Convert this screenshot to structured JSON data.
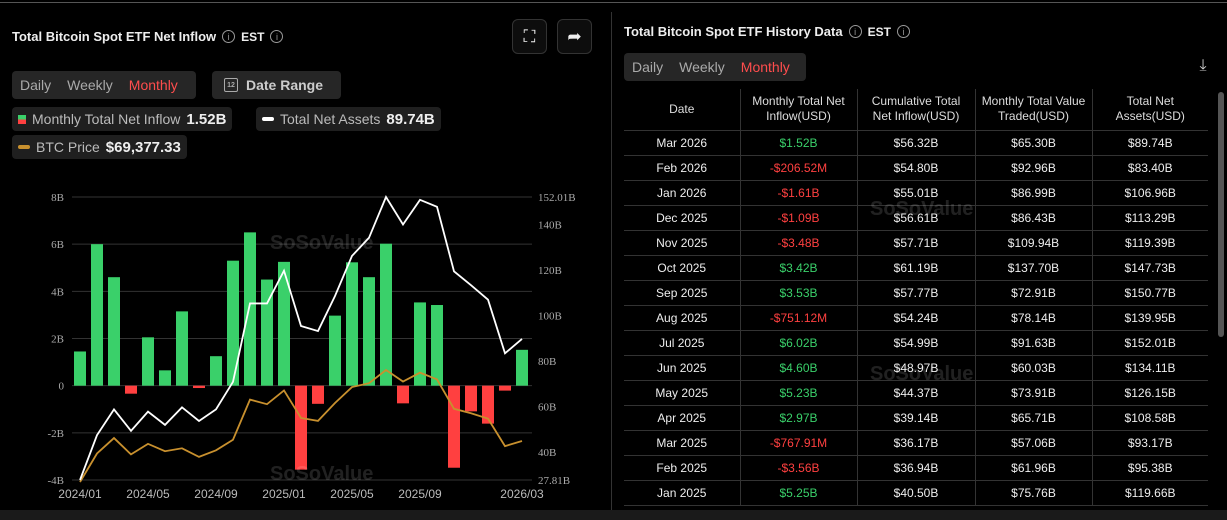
{
  "left_panel": {
    "title": "Total Bitcoin Spot ETF Net Inflow",
    "timezone": "EST",
    "tabs": [
      "Daily",
      "Weekly",
      "Monthly"
    ],
    "active_tab": "Monthly",
    "date_range_label": "Date Range",
    "calendar_icon_text": "12",
    "legend": {
      "inflow_label": "Monthly Total Net Inflow",
      "inflow_value": "1.52B",
      "assets_label": "Total Net Assets",
      "assets_value": "89.74B",
      "price_label": "BTC Price",
      "price_value": "$69,377.33"
    },
    "watermark": "SoSoValue"
  },
  "colors": {
    "positive": "#3ad06a",
    "negative": "#ff4040",
    "assets_line": "#ffffff",
    "price_line": "#c8902e",
    "active_tab": "#ff4d4d"
  },
  "chart_data": {
    "type": "bar+line",
    "categories": [
      "2024/01",
      "2024/02",
      "2024/03",
      "2024/04",
      "2024/05",
      "2024/06",
      "2024/07",
      "2024/08",
      "2024/09",
      "2024/10",
      "2024/11",
      "2024/12",
      "2025/01",
      "2025/02",
      "2025/03",
      "2025/04",
      "2025/05",
      "2025/06",
      "2025/07",
      "2025/08",
      "2025/09",
      "2025/10",
      "2025/11",
      "2025/12",
      "2026/01",
      "2026/02",
      "2026/03"
    ],
    "x_tick_labels": [
      "2024/01",
      "2024/05",
      "2024/09",
      "2025/01",
      "2025/05",
      "2025/09",
      "2026/03"
    ],
    "x_tick_index": [
      0,
      4,
      8,
      12,
      16,
      20,
      26
    ],
    "left_axis": {
      "ylim": [
        -4,
        8
      ],
      "unit": "B",
      "ticks": [
        "8B",
        "6B",
        "4B",
        "2B",
        "0",
        "-2B",
        "-4B"
      ],
      "tick_values": [
        8,
        6,
        4,
        2,
        0,
        -2,
        -4
      ]
    },
    "right_axis": {
      "ylim": [
        27.81,
        152.01
      ],
      "ticks": [
        "152.01B",
        "140B",
        "120B",
        "100B",
        "80B",
        "60B",
        "40B",
        "27.81B"
      ],
      "tick_values": [
        152.01,
        140,
        120,
        100,
        80,
        60,
        40,
        27.81
      ]
    },
    "grid": true,
    "series": [
      {
        "name": "Monthly Total Net Inflow",
        "type": "bar",
        "axis": "left",
        "values": [
          1.45,
          6.0,
          4.6,
          -0.34,
          2.05,
          0.65,
          3.15,
          -0.1,
          1.25,
          5.3,
          6.5,
          4.5,
          5.25,
          -3.56,
          -0.77,
          2.97,
          5.23,
          4.6,
          6.02,
          -0.75,
          3.53,
          3.42,
          -3.48,
          -1.09,
          -1.61,
          -0.21,
          1.52
        ]
      },
      {
        "name": "Total Net Assets",
        "type": "line",
        "axis": "right",
        "values": [
          27.81,
          47.5,
          58.8,
          49.4,
          57.8,
          52.0,
          59.7,
          53.7,
          58.8,
          70.9,
          105.3,
          105.3,
          119.66,
          95.38,
          93.17,
          108.58,
          126.15,
          134.11,
          152.01,
          139.95,
          150.77,
          147.73,
          119.39,
          113.29,
          106.96,
          83.4,
          89.74
        ]
      },
      {
        "name": "BTC Price",
        "type": "line",
        "axis": "hidden",
        "values": [
          42600,
          61200,
          71300,
          60600,
          67500,
          62700,
          64600,
          59000,
          63300,
          70200,
          96400,
          93400,
          102400,
          84400,
          82500,
          94200,
          104600,
          107100,
          115700,
          108200,
          114000,
          109600,
          90400,
          87500,
          84000,
          66000,
          69377.33
        ]
      }
    ]
  },
  "right_panel": {
    "title": "Total Bitcoin Spot ETF History Data",
    "timezone": "EST",
    "tabs": [
      "Daily",
      "Weekly",
      "Monthly"
    ],
    "active_tab": "Monthly",
    "columns": [
      "Date",
      "Monthly Total Net Inflow(USD)",
      "Cumulative Total Net Inflow(USD)",
      "Monthly Total Value Traded(USD)",
      "Total Net Assets(USD)"
    ],
    "rows": [
      [
        "Mar 2026",
        "$1.52B",
        "$56.32B",
        "$65.30B",
        "$89.74B"
      ],
      [
        "Feb 2026",
        "-$206.52M",
        "$54.80B",
        "$92.96B",
        "$83.40B"
      ],
      [
        "Jan 2026",
        "-$1.61B",
        "$55.01B",
        "$86.99B",
        "$106.96B"
      ],
      [
        "Dec 2025",
        "-$1.09B",
        "$56.61B",
        "$86.43B",
        "$113.29B"
      ],
      [
        "Nov 2025",
        "-$3.48B",
        "$57.71B",
        "$109.94B",
        "$119.39B"
      ],
      [
        "Oct 2025",
        "$3.42B",
        "$61.19B",
        "$137.70B",
        "$147.73B"
      ],
      [
        "Sep 2025",
        "$3.53B",
        "$57.77B",
        "$72.91B",
        "$150.77B"
      ],
      [
        "Aug 2025",
        "-$751.12M",
        "$54.24B",
        "$78.14B",
        "$139.95B"
      ],
      [
        "Jul 2025",
        "$6.02B",
        "$54.99B",
        "$91.63B",
        "$152.01B"
      ],
      [
        "Jun 2025",
        "$4.60B",
        "$48.97B",
        "$60.03B",
        "$134.11B"
      ],
      [
        "May 2025",
        "$5.23B",
        "$44.37B",
        "$73.91B",
        "$126.15B"
      ],
      [
        "Apr 2025",
        "$2.97B",
        "$39.14B",
        "$65.71B",
        "$108.58B"
      ],
      [
        "Mar 2025",
        "-$767.91M",
        "$36.17B",
        "$57.06B",
        "$93.17B"
      ],
      [
        "Feb 2025",
        "-$3.56B",
        "$36.94B",
        "$61.96B",
        "$95.38B"
      ],
      [
        "Jan 2025",
        "$5.25B",
        "$40.50B",
        "$75.76B",
        "$119.66B"
      ]
    ]
  }
}
